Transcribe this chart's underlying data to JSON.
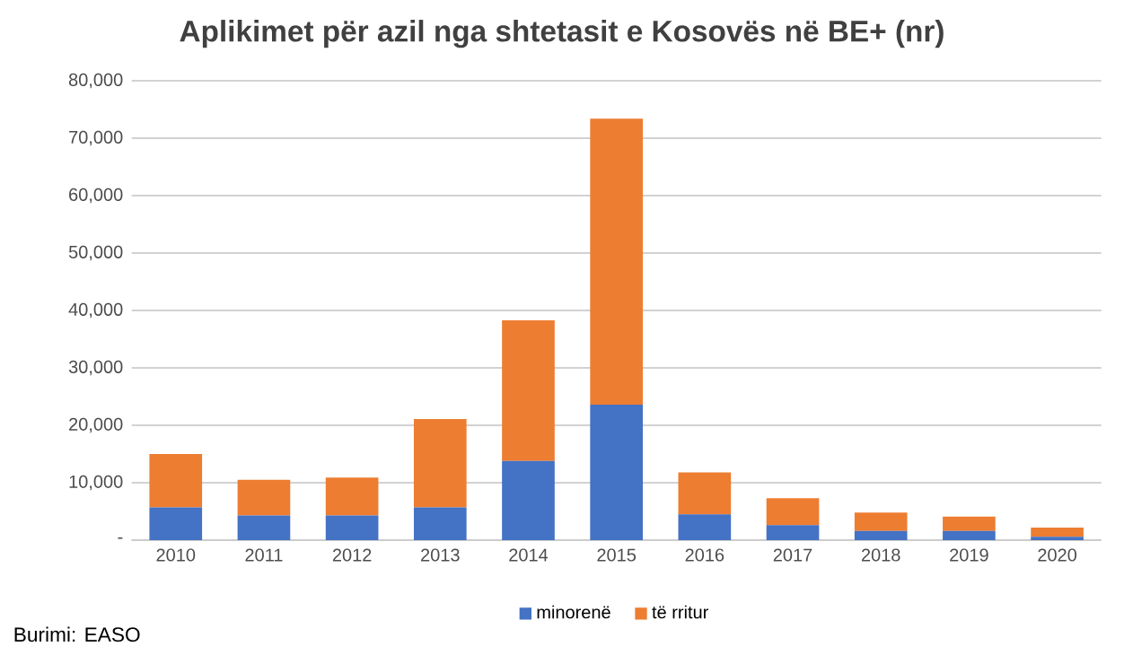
{
  "chart_data": {
    "type": "bar",
    "title": "Aplikimet për azil nga shtetasit e Kosovës në BE+ (nr)",
    "categories": [
      "2010",
      "2011",
      "2012",
      "2013",
      "2014",
      "2015",
      "2016",
      "2017",
      "2018",
      "2019",
      "2020"
    ],
    "series": [
      {
        "name": "minorenë",
        "color": "#4472c4",
        "values": [
          5700,
          4300,
          4300,
          5700,
          13800,
          23600,
          4500,
          2600,
          1600,
          1600,
          600
        ]
      },
      {
        "name": "të rritur",
        "color": "#ed7d31",
        "values": [
          9300,
          6200,
          6600,
          15400,
          24500,
          49800,
          7300,
          4700,
          3200,
          2500,
          1600
        ]
      }
    ],
    "stacked": true,
    "ylim": [
      0,
      80000
    ],
    "yticks": [
      {
        "value": 0,
        "label": "-"
      },
      {
        "value": 10000,
        "label": "10,000"
      },
      {
        "value": 20000,
        "label": "20,000"
      },
      {
        "value": 30000,
        "label": "30,000"
      },
      {
        "value": 40000,
        "label": "40,000"
      },
      {
        "value": 50000,
        "label": "50,000"
      },
      {
        "value": 60000,
        "label": "60,000"
      },
      {
        "value": 70000,
        "label": "70,000"
      },
      {
        "value": 80000,
        "label": "80,000"
      }
    ],
    "grid": "y",
    "legend": "bottom",
    "annotations": [
      "Burimi: EASO"
    ]
  }
}
